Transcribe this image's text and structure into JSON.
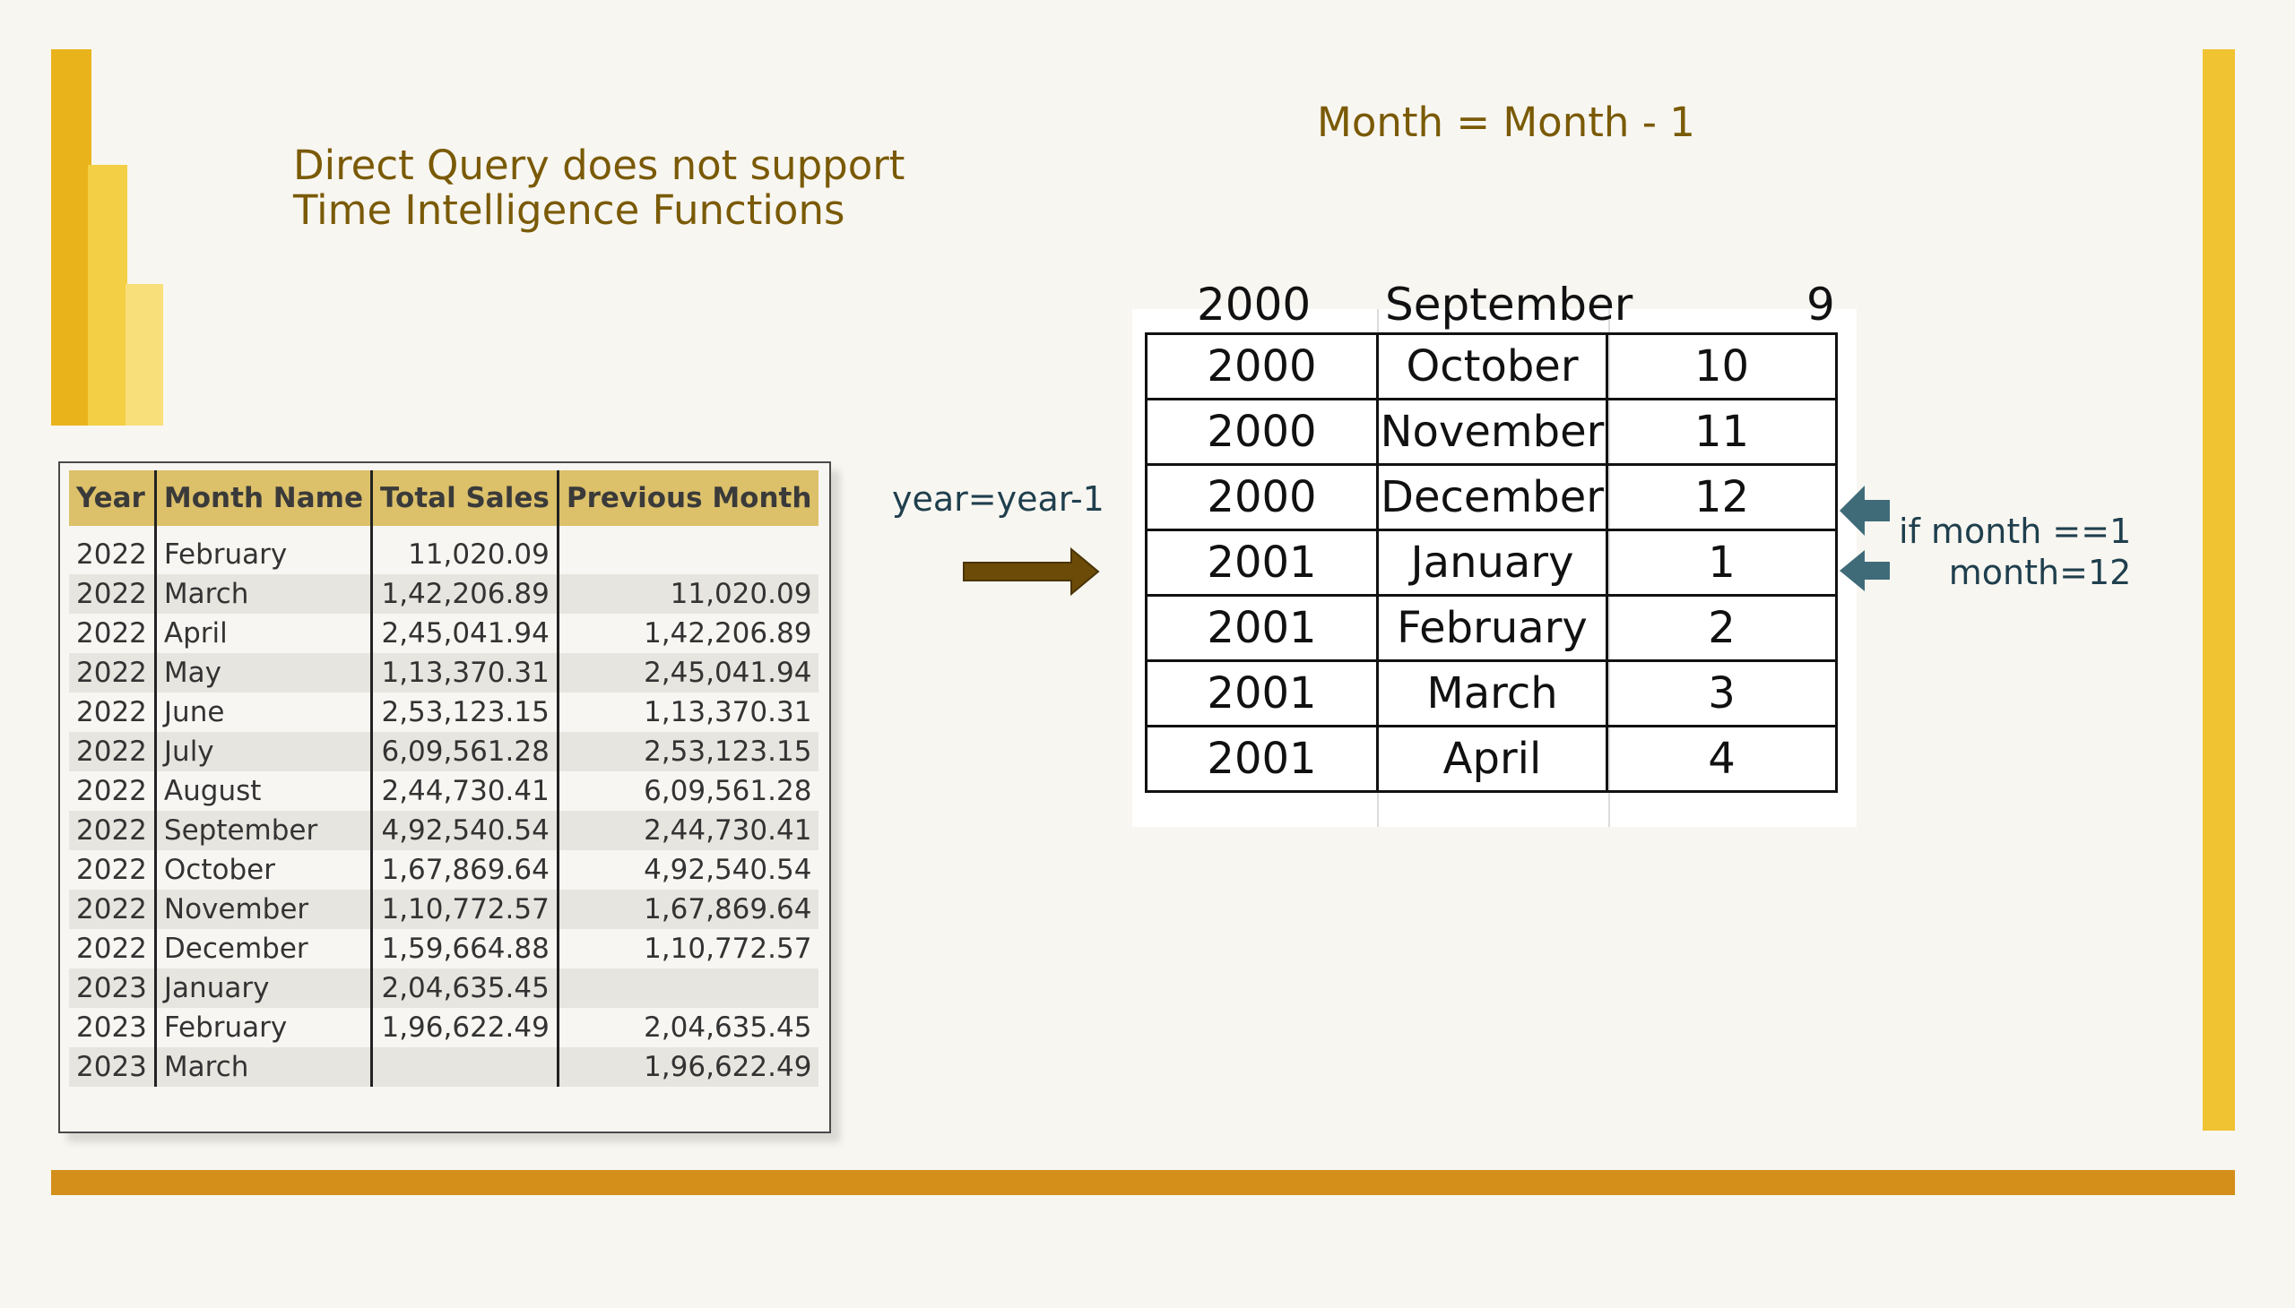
{
  "title": {
    "line1": "Direct Query does not support",
    "line2": "Time Intelligence Functions"
  },
  "formula": "Month = Month - 1",
  "year_label": "year=year-1",
  "side_note": {
    "line1": "if month ==1",
    "line2": "month=12"
  },
  "colors": {
    "logo_dark": "#e9b31c",
    "logo_mid": "#f3cf45",
    "logo_light": "#f8df7a",
    "accent_right": "#efc331",
    "accent_bottom": "#d38f19",
    "title_text": "#7a5a06",
    "arrow_brown": "#6b4b07",
    "arrow_teal": "#3f6b79"
  },
  "pbi_table": {
    "headers": [
      "Year",
      "Month Name",
      "Total Sales",
      "Previous Month"
    ],
    "rows": [
      [
        "2022",
        "February",
        "11,020.09",
        ""
      ],
      [
        "2022",
        "March",
        "1,42,206.89",
        "11,020.09"
      ],
      [
        "2022",
        "April",
        "2,45,041.94",
        "1,42,206.89"
      ],
      [
        "2022",
        "May",
        "1,13,370.31",
        "2,45,041.94"
      ],
      [
        "2022",
        "June",
        "2,53,123.15",
        "1,13,370.31"
      ],
      [
        "2022",
        "July",
        "6,09,561.28",
        "2,53,123.15"
      ],
      [
        "2022",
        "August",
        "2,44,730.41",
        "6,09,561.28"
      ],
      [
        "2022",
        "September",
        "4,92,540.54",
        "2,44,730.41"
      ],
      [
        "2022",
        "October",
        "1,67,869.64",
        "4,92,540.54"
      ],
      [
        "2022",
        "November",
        "1,10,772.57",
        "1,67,869.64"
      ],
      [
        "2022",
        "December",
        "1,59,664.88",
        "1,10,772.57"
      ],
      [
        "2023",
        "January",
        "2,04,635.45",
        ""
      ],
      [
        "2023",
        "February",
        "1,96,622.49",
        "2,04,635.45"
      ],
      [
        "2023",
        "March",
        "",
        "1,96,622.49"
      ]
    ]
  },
  "excel_table": {
    "cut_row": [
      "2000",
      "September",
      "9"
    ],
    "rows": [
      [
        "2000",
        "October",
        "10"
      ],
      [
        "2000",
        "November",
        "11"
      ],
      [
        "2000",
        "December",
        "12"
      ],
      [
        "2001",
        "January",
        "1"
      ],
      [
        "2001",
        "February",
        "2"
      ],
      [
        "2001",
        "March",
        "3"
      ],
      [
        "2001",
        "April",
        "4"
      ]
    ]
  }
}
